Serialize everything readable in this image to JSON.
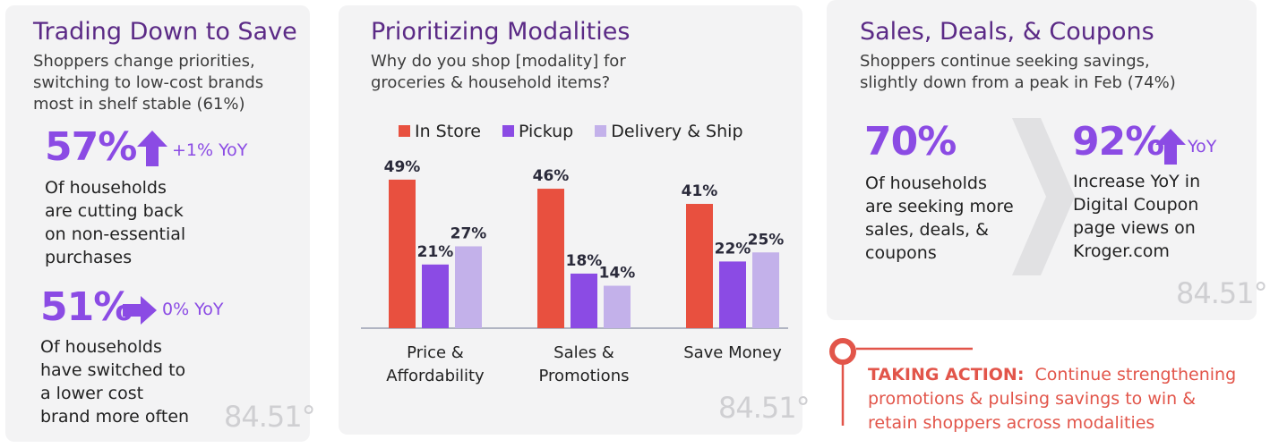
{
  "panel1": {
    "title": "Trading Down to Save",
    "subtitle_lines": [
      "Shoppers change priorities,",
      "switching to low-cost brands",
      "most in shelf stable (61%)"
    ],
    "stat1": {
      "value": "57%",
      "yoy": "+1% YoY",
      "icon": "arrow-up-icon",
      "text_lines": [
        "Of households",
        "are cutting back",
        "on non-essential",
        "purchases"
      ]
    },
    "stat2": {
      "value": "51%",
      "yoy": "0% YoY",
      "icon": "arrow-right-icon",
      "text_lines": [
        "Of households",
        "have switched to",
        "a lower cost",
        "brand more often"
      ]
    },
    "logo": "84.51°"
  },
  "panel2": {
    "title": "Prioritizing Modalities",
    "subtitle_lines": [
      "Why do you shop [modality] for",
      "groceries & household items?"
    ],
    "logo": "84.51°"
  },
  "chart_data": {
    "type": "bar",
    "categories": [
      "Price & Affordability",
      "Sales & Promotions",
      "Save Money"
    ],
    "category_lines": [
      [
        "Price &",
        "Affordability"
      ],
      [
        "Sales &",
        "Promotions"
      ],
      [
        "Save Money"
      ]
    ],
    "series": [
      {
        "name": "In Store",
        "color": "#e8503f",
        "values": [
          49,
          46,
          41
        ]
      },
      {
        "name": "Pickup",
        "color": "#8b4be4",
        "values": [
          21,
          18,
          22
        ]
      },
      {
        "name": "Delivery & Ship",
        "color": "#c3b1ea",
        "values": [
          27,
          14,
          25
        ]
      }
    ],
    "value_suffix": "%",
    "legend_position": "top",
    "grid": false,
    "ylim": [
      0,
      60
    ]
  },
  "panel3": {
    "title": "Sales, Deals, & Coupons",
    "subtitle_lines": [
      "Shoppers continue seeking savings,",
      "slightly down from a peak in Feb (74%)"
    ],
    "stat1": {
      "value": "70%",
      "text_lines": [
        "Of households",
        "are seeking more",
        "sales, deals, &",
        "coupons"
      ]
    },
    "stat2": {
      "value": "92%",
      "yoy": "YoY",
      "icon": "arrow-up-icon",
      "text_lines": [
        "Increase YoY in",
        "Digital Coupon",
        "page views on",
        "Kroger.com"
      ]
    },
    "logo": "84.51°"
  },
  "action": {
    "label": "TAKING ACTION:",
    "lines": [
      "Continue strengthening",
      "promotions & pulsing savings to win &",
      "retain shoppers across modalities"
    ],
    "icon": "pin-icon"
  },
  "colors": {
    "purple": "#8b4be4",
    "dark_purple": "#5b2a86",
    "red": "#e8503f",
    "lavender": "#c3b1ea"
  }
}
